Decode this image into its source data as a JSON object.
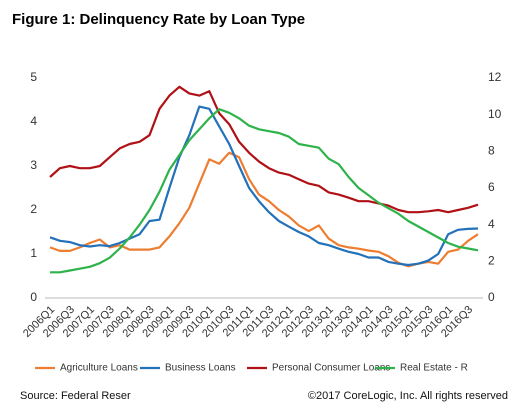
{
  "chart_data": {
    "type": "line",
    "title": "Figure 1: Delinquency Rate by Loan Type",
    "source": "Source: Federal Reser",
    "copyright": "©2017 CoreLogic, Inc. All rights reserved",
    "categories": [
      "2006Q1",
      null,
      "2006Q3",
      null,
      "2007Q1",
      null,
      "2007Q3",
      null,
      "2008Q1",
      null,
      "2008Q3",
      null,
      "2009Q1",
      null,
      "2009Q3",
      null,
      "2010Q1",
      null,
      "2010Q3",
      null,
      "2011Q1",
      null,
      "2011Q3",
      null,
      "2012Q1",
      null,
      "2012Q3",
      null,
      "2013Q1",
      null,
      "2013Q3",
      null,
      "2014Q1",
      null,
      "2014Q3",
      null,
      "2015Q1",
      null,
      "2015Q3",
      null,
      "2016Q1",
      null,
      "2016Q3",
      null
    ],
    "ylim": [
      0,
      5
    ],
    "yticks": [
      0,
      1,
      2,
      3,
      4,
      5
    ],
    "y2lim": [
      0,
      12
    ],
    "y2ticks": [
      0,
      2,
      4,
      6,
      8,
      10,
      12
    ],
    "legend": "bottom",
    "series": [
      {
        "name": "Agriculture Loans",
        "color": "#ed7d31",
        "values": [
          1.15,
          1.07,
          1.07,
          1.15,
          1.25,
          1.33,
          1.15,
          1.2,
          1.1,
          1.1,
          1.1,
          1.15,
          1.4,
          1.7,
          2.05,
          2.6,
          3.15,
          3.05,
          3.3,
          3.2,
          2.7,
          2.35,
          2.2,
          2.0,
          1.85,
          1.65,
          1.52,
          1.65,
          1.35,
          1.2,
          1.15,
          1.12,
          1.08,
          1.05,
          0.95,
          0.8,
          0.72,
          0.78,
          0.82,
          0.78,
          1.05,
          1.1,
          1.3,
          1.45
        ]
      },
      {
        "name": "Business Loans",
        "color": "#2371b9",
        "values": [
          1.38,
          1.3,
          1.27,
          1.2,
          1.17,
          1.2,
          1.18,
          1.25,
          1.35,
          1.45,
          1.75,
          1.78,
          2.5,
          3.2,
          3.7,
          4.35,
          4.3,
          3.9,
          3.5,
          3.0,
          2.5,
          2.2,
          1.95,
          1.75,
          1.62,
          1.5,
          1.4,
          1.25,
          1.2,
          1.12,
          1.05,
          1.0,
          0.92,
          0.92,
          0.82,
          0.78,
          0.75,
          0.78,
          0.85,
          1.0,
          1.45,
          1.55,
          1.57,
          1.58
        ]
      },
      {
        "name": "Personal Consumer Loans",
        "color": "#b01116",
        "values": [
          2.75,
          2.95,
          3.0,
          2.95,
          2.95,
          3.0,
          3.2,
          3.4,
          3.5,
          3.55,
          3.7,
          4.3,
          4.6,
          4.8,
          4.65,
          4.6,
          4.7,
          4.2,
          3.95,
          3.55,
          3.3,
          3.1,
          2.95,
          2.85,
          2.8,
          2.7,
          2.6,
          2.55,
          2.4,
          2.35,
          2.28,
          2.2,
          2.2,
          2.15,
          2.1,
          2.0,
          1.95,
          1.95,
          1.97,
          2.0,
          1.95,
          2.0,
          2.05,
          2.12
        ]
      },
      {
        "name": "Real Estate - R",
        "color": "#2db34a",
        "axis": "y2",
        "values": [
          1.4,
          1.4,
          1.5,
          1.6,
          1.7,
          1.9,
          2.2,
          2.7,
          3.3,
          4.0,
          4.8,
          5.8,
          7.0,
          7.8,
          8.6,
          9.2,
          9.8,
          10.3,
          10.1,
          9.8,
          9.4,
          9.2,
          9.1,
          9.0,
          8.8,
          8.4,
          8.3,
          8.2,
          7.6,
          7.3,
          6.6,
          6.0,
          5.6,
          5.2,
          4.9,
          4.6,
          4.2,
          3.9,
          3.6,
          3.3,
          3.0,
          2.8,
          2.7,
          2.6
        ]
      }
    ]
  }
}
